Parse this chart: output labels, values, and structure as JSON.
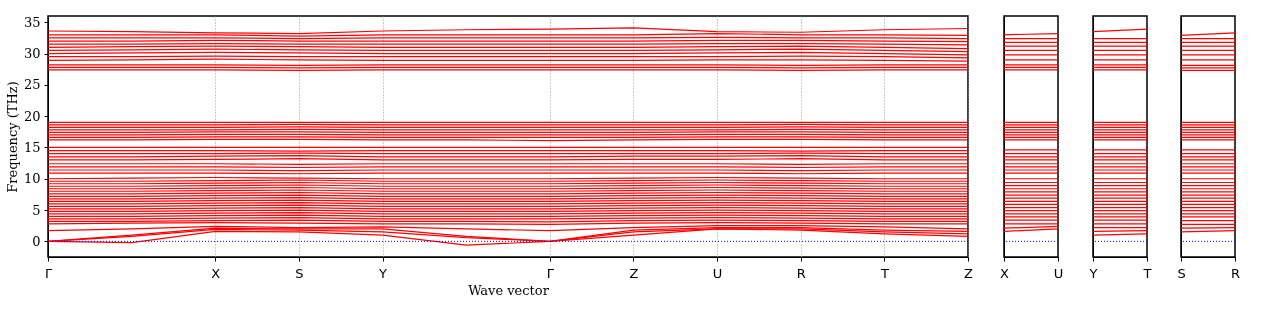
{
  "chart_data": [
    {
      "type": "line",
      "ylabel": "Frequency (THz)",
      "xlabel": "Wave vector",
      "color": "#ff0000",
      "grid": "x",
      "line_style": "solid",
      "marker": "none",
      "categories": [
        "Γ",
        null,
        "X",
        "S",
        "Y",
        null,
        "Γ",
        "Z",
        "U",
        "R",
        "T",
        "Z"
      ],
      "ylim": [
        -2.5,
        36
      ],
      "yticks": [
        0,
        5,
        10,
        15,
        20,
        25,
        30,
        35
      ],
      "ref_lines": [
        {
          "axis": "y",
          "value": 0,
          "color": "#0000ff",
          "line_style": "dotted"
        }
      ],
      "series": [
        {
          "values": [
            0,
            -0.2,
            1.6,
            1.5,
            1.0,
            -0.6,
            0,
            1.0,
            2.0,
            1.8,
            1.2,
            0.8
          ]
        },
        {
          "values": [
            0,
            0.8,
            1.9,
            1.8,
            1.5,
            0.6,
            0,
            1.5,
            2.0,
            2.0,
            1.5,
            1.2
          ]
        },
        {
          "values": [
            0,
            1.0,
            2.1,
            2.0,
            2.0,
            0.8,
            0,
            1.8,
            2.2,
            2.2,
            1.8,
            1.6
          ]
        },
        {
          "values": [
            1.7,
            2.0,
            2.4,
            2.2,
            2.3,
            2.0,
            1.7,
            2.2,
            2.5,
            2.5,
            2.3,
            2.0
          ]
        },
        {
          "values": [
            2.8,
            2.9,
            3.0,
            2.9,
            2.8,
            2.8,
            2.7,
            2.9,
            3.0,
            2.9,
            2.8,
            2.8
          ]
        },
        {
          "values": [
            3.2,
            3.2,
            3.3,
            3.4,
            3.2,
            3.2,
            3.1,
            3.3,
            3.4,
            3.3,
            3.2,
            3.2
          ]
        },
        {
          "values": [
            3.6,
            3.6,
            3.7,
            3.8,
            3.6,
            3.6,
            3.6,
            3.7,
            3.8,
            3.7,
            3.6,
            3.6
          ]
        },
        {
          "values": [
            4.0,
            4.0,
            4.1,
            4.2,
            4.0,
            4.0,
            4.0,
            4.1,
            4.2,
            4.1,
            4.0,
            4.0
          ]
        },
        {
          "values": [
            4.4,
            4.4,
            4.5,
            4.6,
            4.4,
            4.4,
            4.4,
            4.5,
            4.6,
            4.5,
            4.4,
            4.4
          ]
        },
        {
          "values": [
            4.8,
            4.8,
            4.9,
            5.0,
            4.8,
            4.8,
            4.8,
            4.9,
            5.0,
            4.9,
            4.8,
            4.8
          ]
        },
        {
          "values": [
            5.2,
            5.2,
            5.3,
            5.4,
            5.2,
            5.2,
            5.2,
            5.3,
            5.4,
            5.3,
            5.2,
            5.2
          ]
        },
        {
          "values": [
            5.6,
            5.6,
            5.7,
            5.8,
            5.6,
            5.6,
            5.6,
            5.7,
            5.8,
            5.7,
            5.6,
            5.6
          ]
        },
        {
          "values": [
            6.0,
            6.0,
            6.1,
            6.2,
            6.0,
            6.0,
            6.0,
            6.1,
            6.2,
            6.1,
            6.0,
            6.0
          ]
        },
        {
          "values": [
            6.4,
            6.4,
            6.5,
            6.6,
            6.4,
            6.4,
            6.4,
            6.5,
            6.6,
            6.5,
            6.4,
            6.4
          ]
        },
        {
          "values": [
            6.8,
            6.8,
            6.9,
            7.0,
            6.8,
            6.8,
            6.8,
            6.9,
            7.0,
            6.9,
            6.8,
            6.8
          ]
        },
        {
          "values": [
            7.2,
            7.2,
            7.3,
            7.4,
            7.2,
            7.2,
            7.2,
            7.3,
            7.4,
            7.3,
            7.2,
            7.2
          ]
        },
        {
          "values": [
            7.6,
            7.6,
            7.7,
            7.8,
            7.6,
            7.6,
            7.6,
            7.7,
            7.8,
            7.7,
            7.6,
            7.6
          ]
        },
        {
          "values": [
            8.0,
            8.0,
            8.1,
            8.2,
            8.0,
            8.0,
            8.0,
            8.1,
            8.2,
            8.1,
            8.0,
            8.0
          ]
        },
        {
          "values": [
            8.4,
            8.4,
            8.5,
            8.6,
            8.4,
            8.4,
            8.4,
            8.5,
            8.6,
            8.5,
            8.4,
            8.4
          ]
        },
        {
          "values": [
            8.8,
            8.8,
            8.9,
            9.0,
            8.8,
            8.8,
            8.8,
            8.9,
            9.0,
            8.9,
            8.8,
            8.8
          ]
        },
        {
          "values": [
            9.2,
            9.2,
            9.3,
            9.4,
            9.2,
            9.2,
            9.2,
            9.3,
            9.4,
            9.3,
            9.2,
            9.2
          ]
        },
        {
          "values": [
            9.6,
            9.6,
            9.7,
            9.8,
            9.6,
            9.6,
            9.6,
            9.7,
            9.8,
            9.7,
            9.6,
            9.6
          ]
        },
        {
          "values": [
            10.0,
            10.1,
            10.2,
            10.1,
            10.0,
            10.0,
            10.0,
            10.1,
            10.2,
            10.1,
            10.0,
            10.0
          ]
        },
        {
          "values": [
            10.9,
            10.9,
            10.9,
            10.8,
            10.9,
            10.9,
            10.9,
            10.9,
            10.9,
            10.8,
            10.9,
            10.9
          ]
        },
        {
          "values": [
            11.4,
            11.4,
            11.4,
            11.3,
            11.4,
            11.4,
            11.4,
            11.4,
            11.4,
            11.3,
            11.4,
            11.4
          ]
        },
        {
          "values": [
            11.9,
            11.9,
            11.9,
            11.8,
            11.9,
            11.9,
            11.9,
            11.9,
            11.9,
            11.8,
            11.9,
            11.9
          ]
        },
        {
          "values": [
            12.4,
            12.4,
            12.4,
            12.3,
            12.4,
            12.4,
            12.4,
            12.4,
            12.4,
            12.3,
            12.4,
            12.4
          ]
        },
        {
          "values": [
            13.0,
            13.0,
            13.1,
            13.2,
            13.0,
            13.0,
            13.0,
            13.1,
            13.1,
            13.2,
            13.0,
            13.0
          ]
        },
        {
          "values": [
            13.5,
            13.5,
            13.6,
            13.7,
            13.5,
            13.5,
            13.5,
            13.6,
            13.6,
            13.7,
            13.5,
            13.5
          ]
        },
        {
          "values": [
            14.0,
            14.0,
            14.0,
            14.1,
            14.0,
            14.0,
            14.0,
            14.0,
            14.0,
            14.1,
            14.0,
            14.0
          ]
        },
        {
          "values": [
            14.5,
            14.5,
            14.5,
            14.4,
            14.5,
            14.5,
            14.5,
            14.5,
            14.5,
            14.4,
            14.5,
            14.5
          ]
        },
        {
          "values": [
            15.0,
            15.0,
            15.0,
            15.0,
            15.0,
            15.0,
            15.0,
            15.0,
            15.0,
            15.0,
            15.0,
            15.0
          ]
        },
        {
          "values": [
            16.2,
            16.2,
            16.3,
            16.3,
            16.2,
            16.2,
            16.1,
            16.2,
            16.3,
            16.3,
            16.2,
            16.2
          ]
        },
        {
          "values": [
            16.6,
            16.6,
            16.7,
            16.7,
            16.6,
            16.6,
            16.6,
            16.6,
            16.7,
            16.7,
            16.6,
            16.6
          ]
        },
        {
          "values": [
            17.0,
            17.0,
            17.1,
            17.1,
            17.0,
            17.0,
            17.0,
            17.0,
            17.1,
            17.1,
            17.0,
            17.0
          ]
        },
        {
          "values": [
            17.4,
            17.4,
            17.5,
            17.5,
            17.4,
            17.4,
            17.4,
            17.4,
            17.5,
            17.5,
            17.4,
            17.4
          ]
        },
        {
          "values": [
            17.8,
            17.8,
            17.8,
            17.9,
            17.8,
            17.8,
            17.8,
            17.8,
            17.8,
            17.9,
            17.8,
            17.8
          ]
        },
        {
          "values": [
            18.2,
            18.2,
            18.2,
            18.3,
            18.2,
            18.2,
            18.2,
            18.2,
            18.2,
            18.3,
            18.2,
            18.2
          ]
        },
        {
          "values": [
            18.6,
            18.6,
            18.6,
            18.7,
            18.6,
            18.6,
            18.6,
            18.6,
            18.6,
            18.7,
            18.6,
            18.6
          ]
        },
        {
          "values": [
            19.0,
            19.0,
            19.0,
            19.0,
            19.0,
            19.0,
            19.0,
            19.0,
            19.0,
            19.0,
            19.0,
            19.0
          ]
        },
        {
          "values": [
            27.4,
            27.4,
            27.4,
            27.3,
            27.4,
            27.4,
            27.4,
            27.4,
            27.4,
            27.3,
            27.4,
            27.4
          ]
        },
        {
          "values": [
            27.8,
            27.8,
            27.8,
            27.7,
            27.8,
            27.8,
            27.8,
            27.8,
            27.8,
            27.7,
            27.8,
            27.8
          ]
        },
        {
          "values": [
            28.2,
            28.2,
            28.2,
            28.1,
            28.2,
            28.2,
            28.2,
            28.2,
            28.2,
            28.1,
            28.2,
            28.2
          ]
        },
        {
          "values": [
            28.9,
            29.0,
            29.1,
            29.0,
            28.9,
            28.9,
            28.9,
            28.9,
            29.0,
            29.0,
            28.9,
            28.8
          ]
        },
        {
          "values": [
            29.5,
            29.5,
            29.6,
            29.5,
            29.5,
            29.5,
            29.5,
            29.5,
            29.5,
            29.6,
            29.5,
            29.3
          ]
        },
        {
          "values": [
            30.0,
            30.1,
            30.2,
            30.1,
            30.0,
            30.0,
            30.0,
            30.0,
            30.1,
            30.2,
            30.0,
            29.8
          ]
        },
        {
          "values": [
            30.5,
            30.6,
            30.7,
            30.6,
            30.5,
            30.5,
            30.5,
            30.5,
            30.6,
            30.7,
            30.5,
            30.3
          ]
        },
        {
          "values": [
            31.0,
            31.1,
            31.2,
            31.1,
            31.0,
            31.0,
            31.0,
            31.0,
            31.1,
            31.2,
            31.0,
            30.8
          ]
        },
        {
          "values": [
            31.5,
            31.5,
            31.6,
            31.5,
            31.5,
            31.5,
            31.5,
            31.5,
            31.6,
            31.6,
            31.5,
            31.4
          ]
        },
        {
          "values": [
            32.0,
            32.0,
            32.1,
            32.0,
            32.0,
            32.0,
            32.0,
            32.0,
            32.1,
            32.1,
            32.0,
            31.9
          ]
        },
        {
          "values": [
            32.5,
            32.5,
            32.5,
            32.4,
            32.5,
            32.5,
            32.5,
            32.5,
            32.6,
            32.5,
            32.5,
            32.4
          ]
        },
        {
          "values": [
            33.0,
            33.0,
            33.0,
            32.8,
            33.0,
            33.0,
            33.0,
            33.0,
            33.2,
            33.0,
            33.0,
            32.9
          ]
        },
        {
          "values": [
            33.6,
            33.5,
            33.3,
            33.2,
            33.6,
            33.8,
            33.9,
            34.1,
            33.5,
            33.4,
            33.8,
            34.0
          ]
        }
      ]
    },
    {
      "type": "line",
      "color": "#ff0000",
      "tick_labels": "x",
      "line_style": "solid",
      "marker": "none",
      "categories": [
        "X",
        "U"
      ],
      "ylim": [
        -2.5,
        36
      ],
      "ref_lines": [
        {
          "axis": "y",
          "value": 0,
          "color": "#0000ff",
          "line_style": "dotted"
        }
      ],
      "series": [
        {
          "values": [
            1.6,
            2.0
          ]
        },
        {
          "values": [
            2.1,
            2.4
          ]
        },
        {
          "values": [
            2.8,
            2.8
          ]
        },
        {
          "values": [
            3.4,
            3.4
          ]
        },
        {
          "values": [
            3.9,
            3.9
          ]
        },
        {
          "values": [
            4.4,
            4.4
          ]
        },
        {
          "values": [
            4.9,
            4.9
          ]
        },
        {
          "values": [
            5.4,
            5.4
          ]
        },
        {
          "values": [
            5.9,
            5.9
          ]
        },
        {
          "values": [
            6.4,
            6.4
          ]
        },
        {
          "values": [
            6.9,
            6.9
          ]
        },
        {
          "values": [
            7.4,
            7.4
          ]
        },
        {
          "values": [
            7.9,
            7.9
          ]
        },
        {
          "values": [
            8.4,
            8.4
          ]
        },
        {
          "values": [
            8.9,
            8.9
          ]
        },
        {
          "values": [
            9.4,
            9.4
          ]
        },
        {
          "values": [
            10.0,
            10.0
          ]
        },
        {
          "values": [
            10.9,
            10.9
          ]
        },
        {
          "values": [
            11.4,
            11.4
          ]
        },
        {
          "values": [
            11.9,
            11.9
          ]
        },
        {
          "values": [
            12.4,
            12.4
          ]
        },
        {
          "values": [
            13.0,
            13.0
          ]
        },
        {
          "values": [
            13.5,
            13.5
          ]
        },
        {
          "values": [
            14.0,
            14.0
          ]
        },
        {
          "values": [
            14.6,
            14.6
          ]
        },
        {
          "values": [
            16.2,
            16.2
          ]
        },
        {
          "values": [
            16.6,
            16.6
          ]
        },
        {
          "values": [
            17.0,
            17.0
          ]
        },
        {
          "values": [
            17.4,
            17.4
          ]
        },
        {
          "values": [
            17.8,
            17.8
          ]
        },
        {
          "values": [
            18.2,
            18.2
          ]
        },
        {
          "values": [
            18.6,
            18.6
          ]
        },
        {
          "values": [
            19.0,
            19.0
          ]
        },
        {
          "values": [
            27.4,
            27.4
          ]
        },
        {
          "values": [
            27.8,
            27.8
          ]
        },
        {
          "values": [
            28.2,
            28.2
          ]
        },
        {
          "values": [
            29.0,
            29.0
          ]
        },
        {
          "values": [
            29.8,
            29.8
          ]
        },
        {
          "values": [
            30.5,
            30.5
          ]
        },
        {
          "values": [
            31.2,
            31.2
          ]
        },
        {
          "values": [
            31.8,
            31.8
          ]
        },
        {
          "values": [
            32.4,
            32.4
          ]
        },
        {
          "values": [
            33.0,
            33.2
          ]
        }
      ]
    },
    {
      "type": "line",
      "color": "#ff0000",
      "tick_labels": "x",
      "line_style": "solid",
      "marker": "none",
      "categories": [
        "Y",
        "T"
      ],
      "ylim": [
        -2.5,
        36
      ],
      "ref_lines": [
        {
          "axis": "y",
          "value": 0,
          "color": "#0000ff",
          "line_style": "dotted"
        }
      ],
      "series": [
        {
          "values": [
            1.0,
            1.2
          ]
        },
        {
          "values": [
            1.6,
            1.7
          ]
        },
        {
          "values": [
            2.2,
            2.2
          ]
        },
        {
          "values": [
            2.8,
            2.8
          ]
        },
        {
          "values": [
            3.4,
            3.4
          ]
        },
        {
          "values": [
            3.9,
            3.9
          ]
        },
        {
          "values": [
            4.4,
            4.4
          ]
        },
        {
          "values": [
            4.9,
            4.9
          ]
        },
        {
          "values": [
            5.4,
            5.4
          ]
        },
        {
          "values": [
            5.9,
            5.9
          ]
        },
        {
          "values": [
            6.4,
            6.4
          ]
        },
        {
          "values": [
            6.9,
            6.9
          ]
        },
        {
          "values": [
            7.4,
            7.4
          ]
        },
        {
          "values": [
            7.9,
            7.9
          ]
        },
        {
          "values": [
            8.4,
            8.4
          ]
        },
        {
          "values": [
            8.9,
            8.9
          ]
        },
        {
          "values": [
            9.4,
            9.4
          ]
        },
        {
          "values": [
            10.0,
            10.0
          ]
        },
        {
          "values": [
            10.9,
            10.9
          ]
        },
        {
          "values": [
            11.4,
            11.4
          ]
        },
        {
          "values": [
            11.9,
            11.9
          ]
        },
        {
          "values": [
            12.4,
            12.4
          ]
        },
        {
          "values": [
            13.0,
            13.0
          ]
        },
        {
          "values": [
            13.5,
            13.5
          ]
        },
        {
          "values": [
            14.0,
            14.0
          ]
        },
        {
          "values": [
            14.6,
            14.6
          ]
        },
        {
          "values": [
            16.2,
            16.2
          ]
        },
        {
          "values": [
            16.6,
            16.6
          ]
        },
        {
          "values": [
            17.0,
            17.0
          ]
        },
        {
          "values": [
            17.4,
            17.4
          ]
        },
        {
          "values": [
            17.8,
            17.8
          ]
        },
        {
          "values": [
            18.2,
            18.2
          ]
        },
        {
          "values": [
            18.6,
            18.6
          ]
        },
        {
          "values": [
            19.0,
            19.0
          ]
        },
        {
          "values": [
            27.4,
            27.4
          ]
        },
        {
          "values": [
            27.8,
            27.8
          ]
        },
        {
          "values": [
            28.2,
            28.2
          ]
        },
        {
          "values": [
            29.0,
            29.0
          ]
        },
        {
          "values": [
            29.8,
            29.8
          ]
        },
        {
          "values": [
            30.5,
            30.5
          ]
        },
        {
          "values": [
            31.2,
            31.2
          ]
        },
        {
          "values": [
            31.8,
            31.8
          ]
        },
        {
          "values": [
            32.4,
            32.4
          ]
        },
        {
          "values": [
            33.5,
            33.9
          ]
        }
      ]
    },
    {
      "type": "line",
      "color": "#ff0000",
      "tick_labels": "x",
      "line_style": "solid",
      "marker": "none",
      "categories": [
        "S",
        "R"
      ],
      "ylim": [
        -2.5,
        36
      ],
      "ref_lines": [
        {
          "axis": "y",
          "value": 0,
          "color": "#0000ff",
          "line_style": "dotted"
        }
      ],
      "series": [
        {
          "values": [
            1.5,
            1.7
          ]
        },
        {
          "values": [
            2.1,
            2.2
          ]
        },
        {
          "values": [
            2.7,
            2.7
          ]
        },
        {
          "values": [
            3.3,
            3.3
          ]
        },
        {
          "values": [
            3.9,
            3.9
          ]
        },
        {
          "values": [
            4.4,
            4.4
          ]
        },
        {
          "values": [
            4.9,
            4.9
          ]
        },
        {
          "values": [
            5.4,
            5.4
          ]
        },
        {
          "values": [
            5.9,
            5.9
          ]
        },
        {
          "values": [
            6.4,
            6.4
          ]
        },
        {
          "values": [
            6.9,
            6.9
          ]
        },
        {
          "values": [
            7.4,
            7.4
          ]
        },
        {
          "values": [
            7.9,
            7.9
          ]
        },
        {
          "values": [
            8.4,
            8.4
          ]
        },
        {
          "values": [
            8.9,
            8.9
          ]
        },
        {
          "values": [
            9.4,
            9.4
          ]
        },
        {
          "values": [
            10.0,
            10.0
          ]
        },
        {
          "values": [
            10.9,
            10.9
          ]
        },
        {
          "values": [
            11.4,
            11.4
          ]
        },
        {
          "values": [
            11.9,
            11.9
          ]
        },
        {
          "values": [
            12.4,
            12.4
          ]
        },
        {
          "values": [
            13.0,
            13.0
          ]
        },
        {
          "values": [
            13.5,
            13.5
          ]
        },
        {
          "values": [
            14.0,
            14.0
          ]
        },
        {
          "values": [
            14.6,
            14.6
          ]
        },
        {
          "values": [
            16.2,
            16.2
          ]
        },
        {
          "values": [
            16.6,
            16.6
          ]
        },
        {
          "values": [
            17.0,
            17.0
          ]
        },
        {
          "values": [
            17.4,
            17.4
          ]
        },
        {
          "values": [
            17.8,
            17.8
          ]
        },
        {
          "values": [
            18.2,
            18.2
          ]
        },
        {
          "values": [
            18.6,
            18.6
          ]
        },
        {
          "values": [
            19.0,
            19.0
          ]
        },
        {
          "values": [
            27.3,
            27.3
          ]
        },
        {
          "values": [
            27.7,
            27.7
          ]
        },
        {
          "values": [
            28.1,
            28.1
          ]
        },
        {
          "values": [
            29.0,
            29.0
          ]
        },
        {
          "values": [
            29.8,
            29.8
          ]
        },
        {
          "values": [
            30.5,
            30.5
          ]
        },
        {
          "values": [
            31.2,
            31.2
          ]
        },
        {
          "values": [
            31.8,
            31.8
          ]
        },
        {
          "values": [
            32.4,
            32.4
          ]
        },
        {
          "values": [
            32.9,
            33.3
          ]
        }
      ]
    }
  ]
}
